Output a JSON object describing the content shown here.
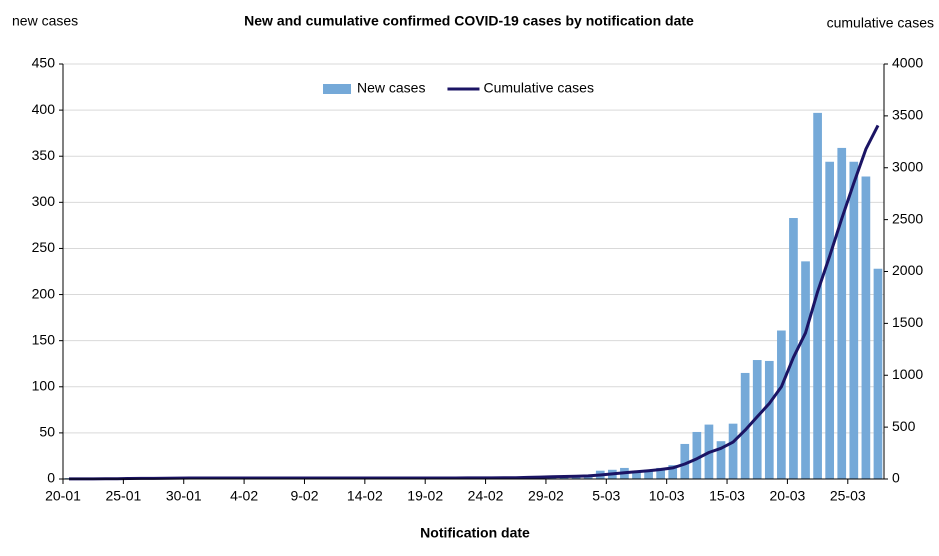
{
  "chart_data": {
    "type": "bar_line",
    "title": "New and cumulative confirmed COVID-19 cases by notification date",
    "y_label": "new cases",
    "y2_label": "cumulative cases",
    "x_label": "Notification date",
    "categories": [
      "20-01",
      null,
      null,
      null,
      null,
      "25-01",
      null,
      null,
      null,
      null,
      "30-01",
      null,
      null,
      null,
      null,
      "4-02",
      null,
      null,
      null,
      null,
      "9-02",
      null,
      null,
      null,
      null,
      "14-02",
      null,
      null,
      null,
      null,
      "19-02",
      null,
      null,
      null,
      null,
      "24-02",
      null,
      null,
      null,
      null,
      "29-02",
      null,
      null,
      null,
      null,
      "5-03",
      null,
      null,
      null,
      null,
      "10-03",
      null,
      null,
      null,
      null,
      "15-03",
      null,
      null,
      null,
      null,
      "20-03",
      null,
      null,
      null,
      null,
      "25-03",
      null,
      null
    ],
    "series": [
      {
        "name": "New cases",
        "kind": "bar",
        "color": "#75a9d8",
        "values": [
          1,
          0,
          0,
          1,
          1,
          2,
          1,
          0,
          1,
          2,
          1,
          0,
          0,
          0,
          0,
          0,
          0,
          0,
          0,
          0,
          0,
          0,
          0,
          0,
          0,
          0,
          0,
          0,
          0,
          0,
          0,
          0,
          0,
          1,
          0,
          0,
          1,
          1,
          2,
          3,
          3,
          3,
          2,
          4,
          9,
          10,
          12,
          9,
          10,
          12,
          15,
          38,
          51,
          59,
          41,
          60,
          115,
          129,
          128,
          161,
          283,
          236,
          397,
          344,
          359,
          344,
          328,
          228
        ]
      },
      {
        "name": "Cumulative cases",
        "kind": "line",
        "axis": "y2",
        "color": "#1b1464",
        "values": [
          1,
          1,
          1,
          2,
          3,
          5,
          6,
          6,
          7,
          9,
          10,
          10,
          10,
          10,
          10,
          10,
          10,
          10,
          10,
          10,
          10,
          10,
          10,
          10,
          10,
          10,
          10,
          10,
          10,
          10,
          10,
          10,
          10,
          11,
          11,
          11,
          12,
          13,
          15,
          18,
          21,
          24,
          26,
          30,
          39,
          49,
          61,
          70,
          80,
          92,
          107,
          145,
          196,
          255,
          296,
          356,
          471,
          600,
          728,
          889,
          1172,
          1408,
          1805,
          2149,
          2508,
          2852,
          3180,
          3408
        ]
      }
    ],
    "ylim": [
      0,
      450
    ],
    "yticks": [
      0,
      50,
      100,
      150,
      200,
      250,
      300,
      350,
      400,
      450
    ],
    "y2lim": [
      0,
      4000
    ],
    "y2ticks": [
      0,
      500,
      1000,
      1500,
      2000,
      2500,
      3000,
      3500,
      4000
    ],
    "grid": true,
    "legend": "top"
  }
}
